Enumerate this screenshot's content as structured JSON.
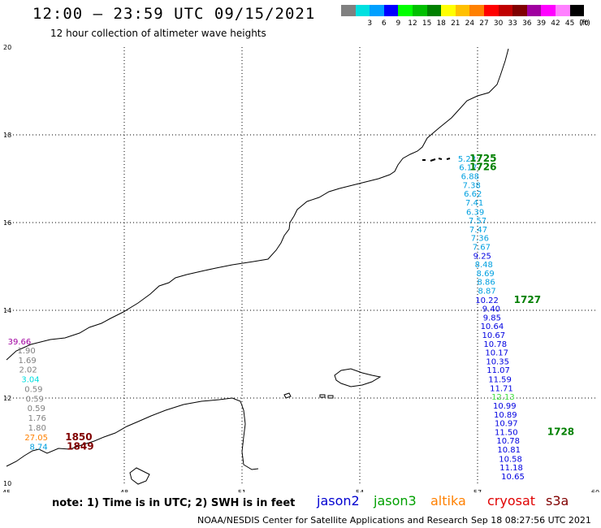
{
  "header": {
    "title": "12:00 – 23:59 UTC 09/15/2021",
    "subtitle": "12 hour collection of altimeter wave heights"
  },
  "legend": {
    "unit": "(ft)",
    "bins": [
      {
        "label": "",
        "color": "#808080"
      },
      {
        "label": "3",
        "color": "#00e0e0"
      },
      {
        "label": "6",
        "color": "#00a0ff"
      },
      {
        "label": "9",
        "color": "#0000ff"
      },
      {
        "label": "12",
        "color": "#00ff00"
      },
      {
        "label": "15",
        "color": "#00c000"
      },
      {
        "label": "18",
        "color": "#008000"
      },
      {
        "label": "21",
        "color": "#ffff00"
      },
      {
        "label": "24",
        "color": "#ffc000"
      },
      {
        "label": "27",
        "color": "#ff8000"
      },
      {
        "label": "30",
        "color": "#ff0000"
      },
      {
        "label": "33",
        "color": "#c00000"
      },
      {
        "label": "36",
        "color": "#800000"
      },
      {
        "label": "39",
        "color": "#a000a0"
      },
      {
        "label": "42",
        "color": "#ff00ff"
      },
      {
        "label": "45",
        "color": "#ff80ff"
      },
      {
        "label": "70",
        "color": "#000000"
      }
    ]
  },
  "map": {
    "lon_ticks": [
      "45",
      "48",
      "51",
      "54",
      "57",
      "60"
    ],
    "lat_ticks": [
      "20",
      "18",
      "16",
      "14",
      "12",
      "10"
    ],
    "lon_range": [
      45,
      60
    ],
    "lat_range": [
      10,
      20
    ]
  },
  "observations": [
    {
      "text": "5.23",
      "color": "#00a0e0",
      "lon": 56.73,
      "lat": 17.39
    },
    {
      "text": "6.17",
      "color": "#00a0e0",
      "lon": 56.76,
      "lat": 17.19
    },
    {
      "text": "6.88",
      "color": "#00a0e0",
      "lon": 56.81,
      "lat": 16.99
    },
    {
      "text": "7.38",
      "color": "#00a0e0",
      "lon": 56.85,
      "lat": 16.79
    },
    {
      "text": "6.62",
      "color": "#00a0e0",
      "lon": 56.88,
      "lat": 16.59
    },
    {
      "text": "7.41",
      "color": "#00a0e0",
      "lon": 56.92,
      "lat": 16.39
    },
    {
      "text": "6.39",
      "color": "#00a0e0",
      "lon": 56.94,
      "lat": 16.18
    },
    {
      "text": "7.57",
      "color": "#00a0e0",
      "lon": 57.0,
      "lat": 15.98
    },
    {
      "text": "7.47",
      "color": "#00a0e0",
      "lon": 57.02,
      "lat": 15.78
    },
    {
      "text": "7.36",
      "color": "#00a0e0",
      "lon": 57.06,
      "lat": 15.58
    },
    {
      "text": "7.67",
      "color": "#00a0e0",
      "lon": 57.1,
      "lat": 15.38
    },
    {
      "text": "9.25",
      "color": "#0000e0",
      "lon": 57.12,
      "lat": 15.18
    },
    {
      "text": "8.48",
      "color": "#00a0e0",
      "lon": 57.16,
      "lat": 14.98
    },
    {
      "text": "8.69",
      "color": "#00a0e0",
      "lon": 57.2,
      "lat": 14.78
    },
    {
      "text": "8.86",
      "color": "#00a0e0",
      "lon": 57.22,
      "lat": 14.58
    },
    {
      "text": "8.87",
      "color": "#00a0e0",
      "lon": 57.24,
      "lat": 14.38
    },
    {
      "text": "10.22",
      "color": "#0000e0",
      "lon": 57.24,
      "lat": 14.17
    },
    {
      "text": "9.40",
      "color": "#0000e0",
      "lon": 57.35,
      "lat": 13.97
    },
    {
      "text": "9.85",
      "color": "#0000e0",
      "lon": 57.37,
      "lat": 13.77
    },
    {
      "text": "10.64",
      "color": "#0000e0",
      "lon": 57.37,
      "lat": 13.57
    },
    {
      "text": "10.67",
      "color": "#0000e0",
      "lon": 57.41,
      "lat": 13.37
    },
    {
      "text": "10.78",
      "color": "#0000e0",
      "lon": 57.45,
      "lat": 13.17
    },
    {
      "text": "10.17",
      "color": "#0000e0",
      "lon": 57.49,
      "lat": 12.97
    },
    {
      "text": "10.35",
      "color": "#0000e0",
      "lon": 57.51,
      "lat": 12.77
    },
    {
      "text": "11.07",
      "color": "#0000e0",
      "lon": 57.53,
      "lat": 12.57
    },
    {
      "text": "11.59",
      "color": "#0000e0",
      "lon": 57.57,
      "lat": 12.36
    },
    {
      "text": "11.71",
      "color": "#0000e0",
      "lon": 57.61,
      "lat": 12.16
    },
    {
      "text": "12.13",
      "color": "#40e040",
      "lon": 57.65,
      "lat": 11.96
    },
    {
      "text": "10.99",
      "color": "#0000e0",
      "lon": 57.69,
      "lat": 11.76
    },
    {
      "text": "10.89",
      "color": "#0000e0",
      "lon": 57.71,
      "lat": 11.56
    },
    {
      "text": "10.97",
      "color": "#0000e0",
      "lon": 57.73,
      "lat": 11.36
    },
    {
      "text": "11.50",
      "color": "#0000e0",
      "lon": 57.73,
      "lat": 11.16
    },
    {
      "text": "10.78",
      "color": "#0000e0",
      "lon": 57.78,
      "lat": 10.96
    },
    {
      "text": "10.81",
      "color": "#0000e0",
      "lon": 57.8,
      "lat": 10.76
    },
    {
      "text": "10.58",
      "color": "#0000e0",
      "lon": 57.84,
      "lat": 10.55
    },
    {
      "text": "11.18",
      "color": "#0000e0",
      "lon": 57.86,
      "lat": 10.35
    },
    {
      "text": "10.65",
      "color": "#0000e0",
      "lon": 57.9,
      "lat": 10.15
    },
    {
      "text": "39.66",
      "color": "#a000a0",
      "lon": 45.33,
      "lat": 13.22
    },
    {
      "text": "1.90",
      "color": "#808080",
      "lon": 45.51,
      "lat": 13.02
    },
    {
      "text": "1.69",
      "color": "#808080",
      "lon": 45.53,
      "lat": 12.8
    },
    {
      "text": "2.02",
      "color": "#808080",
      "lon": 45.55,
      "lat": 12.58
    },
    {
      "text": "3.04",
      "color": "#00e0e0",
      "lon": 45.61,
      "lat": 12.36
    },
    {
      "text": "0.59",
      "color": "#808080",
      "lon": 45.69,
      "lat": 12.14
    },
    {
      "text": "0.59",
      "color": "#808080",
      "lon": 45.72,
      "lat": 11.92
    },
    {
      "text": "0.59",
      "color": "#808080",
      "lon": 45.76,
      "lat": 11.7
    },
    {
      "text": "1.76",
      "color": "#808080",
      "lon": 45.78,
      "lat": 11.48
    },
    {
      "text": "1.80",
      "color": "#808080",
      "lon": 45.78,
      "lat": 11.26
    },
    {
      "text": "27.05",
      "color": "#ff8000",
      "lon": 45.76,
      "lat": 11.04
    },
    {
      "text": "8.74",
      "color": "#00a0e0",
      "lon": 45.82,
      "lat": 10.82
    }
  ],
  "pass_times": [
    {
      "text": "1725",
      "color": "#008000",
      "lon": 57.14,
      "lat": 17.39
    },
    {
      "text": "1726",
      "color": "#008000",
      "lon": 57.14,
      "lat": 17.19
    },
    {
      "text": "1727",
      "color": "#008000",
      "lon": 58.27,
      "lat": 14.17
    },
    {
      "text": "1728",
      "color": "#008000",
      "lon": 59.12,
      "lat": 11.16
    },
    {
      "text": "1850",
      "color": "#800000",
      "lon": 46.84,
      "lat": 11.04
    },
    {
      "text": "1849",
      "color": "#800000",
      "lon": 46.88,
      "lat": 10.82
    }
  ],
  "footer": {
    "note": "note:  1) Time is in UTC;  2) SWH is in feet",
    "satellites": [
      {
        "name": "jason2",
        "color": "#0000d0"
      },
      {
        "name": "jason3",
        "color": "#00a000"
      },
      {
        "name": "altika",
        "color": "#ff8000"
      },
      {
        "name": "cryosat",
        "color": "#e00000"
      },
      {
        "name": "s3a",
        "color": "#800000"
      }
    ],
    "credit": "NOAA/NESDIS Center for Satellite Applications and Research",
    "timestamp": "Sep 18 08:27:56 UTC 2021"
  }
}
